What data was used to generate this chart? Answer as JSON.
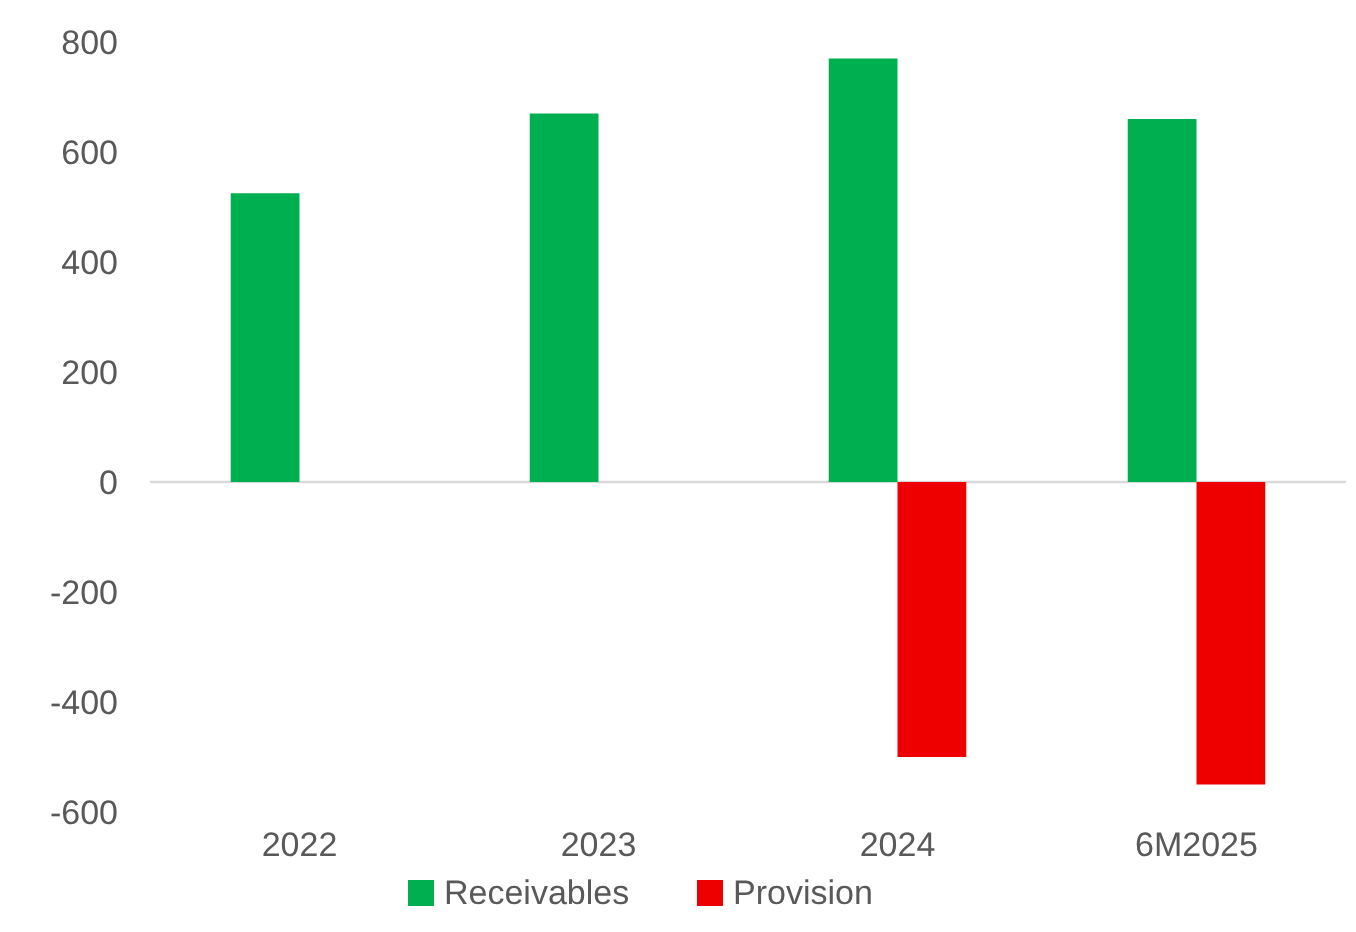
{
  "chart_data": {
    "type": "bar",
    "categories": [
      "2022",
      "2023",
      "2024",
      "6M2025"
    ],
    "series": [
      {
        "name": "Receivables",
        "color": "#00b050",
        "values": [
          525,
          670,
          770,
          660
        ]
      },
      {
        "name": "Provision",
        "color": "#ee0000",
        "values": [
          null,
          null,
          -500,
          -550
        ]
      }
    ],
    "ylim": [
      -600,
      800
    ],
    "yticks": [
      -600,
      -400,
      -200,
      0,
      200,
      400,
      600,
      800
    ],
    "legend": "bottom"
  }
}
